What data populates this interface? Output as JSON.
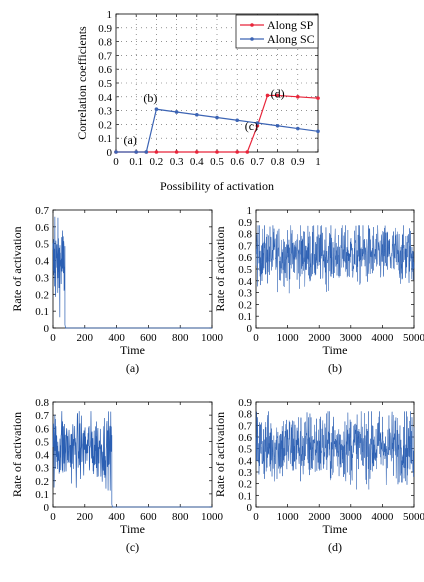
{
  "colors": {
    "sp": "#e8253a",
    "sc": "#3c64b4",
    "trace": "#2b5fb3"
  },
  "chart_data": [
    {
      "type": "line",
      "xlabel": "Possibility of activation",
      "ylabel": "Correlation coefficients",
      "xlim": [
        0,
        1
      ],
      "ylim": [
        0,
        1
      ],
      "xticks": [
        "0",
        "0.1",
        "0.2",
        "0.3",
        "0.4",
        "0.5",
        "0.6",
        "0.7",
        "0.8",
        "0.9",
        "1"
      ],
      "yticks": [
        "0",
        "0.1",
        "0.2",
        "0.3",
        "0.4",
        "0.5",
        "0.6",
        "0.7",
        "0.8",
        "0.9",
        "1"
      ],
      "grid": true,
      "legend": "top-right",
      "series": [
        {
          "name": "Along SP",
          "color": "#e8253a",
          "x": [
            0,
            0.1,
            0.15,
            0.2,
            0.3,
            0.4,
            0.5,
            0.6,
            0.65,
            0.7,
            0.75,
            0.8,
            0.9,
            1.0
          ],
          "y": [
            0,
            0,
            0,
            0,
            0,
            0,
            0,
            0,
            0,
            0.19,
            0.41,
            0.41,
            0.4,
            0.39
          ]
        },
        {
          "name": "Along SC",
          "color": "#3c64b4",
          "x": [
            0,
            0.1,
            0.15,
            0.2,
            0.3,
            0.4,
            0.5,
            0.6,
            0.7,
            0.8,
            0.9,
            1.0
          ],
          "y": [
            0,
            0,
            0,
            0.31,
            0.29,
            0.27,
            0.25,
            0.23,
            0.21,
            0.19,
            0.17,
            0.15
          ]
        }
      ],
      "annotations": [
        {
          "text": "(a)",
          "x": 0.11,
          "y": 0.03
        },
        {
          "text": "(b)",
          "x": 0.2,
          "y": 0.32
        },
        {
          "text": "(c)",
          "x": 0.7,
          "y": 0.19
        },
        {
          "text": "(d)",
          "x": 0.8,
          "y": 0.41
        }
      ]
    },
    {
      "type": "line",
      "caption": "(a)",
      "xlabel": "Time",
      "ylabel": "Rate of activation",
      "xlim": [
        0,
        1000
      ],
      "ylim": [
        0,
        0.7
      ],
      "xticks": [
        "0",
        "200",
        "400",
        "600",
        "800",
        "1000"
      ],
      "yticks": [
        "0",
        "0.1",
        "0.2",
        "0.3",
        "0.4",
        "0.5",
        "0.6",
        "0.7"
      ],
      "description_of_signal": {
        "active_until": 75,
        "mean_before": 0.38,
        "spread_before": 0.12,
        "peak": 0.66,
        "after": 0
      }
    },
    {
      "type": "line",
      "caption": "(b)",
      "xlabel": "Time",
      "ylabel": "Rate of activation",
      "xlim": [
        0,
        5000
      ],
      "ylim": [
        0,
        1
      ],
      "xticks": [
        "0",
        "1000",
        "2000",
        "3000",
        "4000",
        "5000"
      ],
      "yticks": [
        "0",
        "0.1",
        "0.2",
        "0.3",
        "0.4",
        "0.5",
        "0.6",
        "0.7",
        "0.8",
        "0.9",
        "1"
      ],
      "description_of_signal": {
        "mean": 0.62,
        "min": 0.27,
        "max": 0.87
      }
    },
    {
      "type": "line",
      "caption": "(c)",
      "xlabel": "Time",
      "ylabel": "Rate of activation",
      "xlim": [
        0,
        1000
      ],
      "ylim": [
        0,
        0.8
      ],
      "xticks": [
        "0",
        "200",
        "400",
        "600",
        "800",
        "1000"
      ],
      "yticks": [
        "0",
        "0.1",
        "0.2",
        "0.3",
        "0.4",
        "0.5",
        "0.6",
        "0.7",
        "0.8"
      ],
      "description_of_signal": {
        "active_until": 370,
        "mean_before": 0.45,
        "spread_before": 0.13,
        "peak": 0.73,
        "after": 0
      }
    },
    {
      "type": "line",
      "caption": "(d)",
      "xlabel": "Time",
      "ylabel": "Rate of activation",
      "xlim": [
        0,
        5000
      ],
      "ylim": [
        0,
        0.9
      ],
      "xticks": [
        "0",
        "1000",
        "2000",
        "3000",
        "4000",
        "5000"
      ],
      "yticks": [
        "0",
        "0.1",
        "0.2",
        "0.3",
        "0.4",
        "0.5",
        "0.6",
        "0.7",
        "0.8",
        "0.9"
      ],
      "description_of_signal": {
        "mean": 0.52,
        "min": 0.15,
        "max": 0.82
      }
    }
  ]
}
